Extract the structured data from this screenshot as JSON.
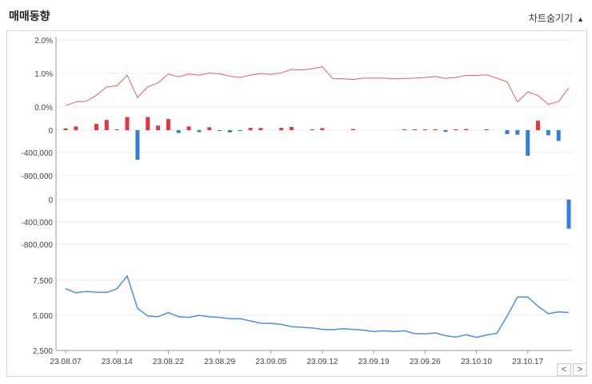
{
  "header": {
    "title": "매매동향",
    "toggle_label": "차트숨기기"
  },
  "nav": {
    "prev": "<",
    "next": ">"
  },
  "colors": {
    "rate": "#f25c5c",
    "positive": "#e8343f",
    "negative": "#2f7fdc",
    "price": "#4a90e2",
    "grid": "#eeeeee"
  },
  "chart_data": [
    {
      "type": "line",
      "name": "rate",
      "yticks": [
        "2.0%",
        "1.0%",
        "0.0%"
      ],
      "ylim": [
        0,
        2
      ],
      "values": [
        0.04,
        0.15,
        0.17,
        0.35,
        0.6,
        0.63,
        0.95,
        0.28,
        0.6,
        0.72,
        0.98,
        0.9,
        0.98,
        0.95,
        1.01,
        0.99,
        0.92,
        0.88,
        0.95,
        1.0,
        0.97,
        1.02,
        1.12,
        1.1,
        1.14,
        1.2,
        0.85,
        0.84,
        0.82,
        0.86,
        0.86,
        0.86,
        0.84,
        0.85,
        0.86,
        0.88,
        0.91,
        0.85,
        0.88,
        0.94,
        0.94,
        0.96,
        0.86,
        0.75,
        0.15,
        0.45,
        0.34,
        0.08,
        0.16,
        0.57
      ]
    },
    {
      "type": "bar",
      "name": "trade_1",
      "yticks": [
        "0",
        "-400,000",
        "-800,000"
      ],
      "ylim": [
        -800000,
        120000
      ],
      "values": [
        30000,
        65000,
        0,
        110000,
        180000,
        8000,
        230000,
        -520000,
        230000,
        80000,
        195000,
        -50000,
        65000,
        -35000,
        50000,
        -15000,
        -40000,
        -10000,
        40000,
        38000,
        0,
        40000,
        55000,
        0,
        15000,
        35000,
        0,
        0,
        20000,
        0,
        0,
        0,
        0,
        8000,
        8000,
        12000,
        12000,
        -30000,
        15000,
        20000,
        0,
        10000,
        0,
        -70000,
        -80000,
        -450000,
        165000,
        -90000,
        -190000,
        0
      ]
    },
    {
      "type": "bar",
      "name": "trade_2",
      "yticks": [
        "0",
        "-400,000",
        "-800,000"
      ],
      "ylim": [
        -800000,
        0
      ],
      "values": [
        0,
        0,
        0,
        0,
        0,
        0,
        0,
        0,
        0,
        0,
        0,
        0,
        0,
        0,
        0,
        0,
        0,
        0,
        0,
        0,
        0,
        0,
        0,
        0,
        0,
        0,
        0,
        0,
        0,
        0,
        0,
        0,
        0,
        0,
        0,
        0,
        0,
        0,
        0,
        0,
        0,
        0,
        0,
        0,
        0,
        0,
        0,
        0,
        0,
        -520000
      ]
    },
    {
      "type": "line",
      "name": "price",
      "yticks": [
        "7,500",
        "5,000",
        "2,500"
      ],
      "ylim": [
        2500,
        7500
      ],
      "values": [
        6900,
        6600,
        6700,
        6650,
        6630,
        6900,
        7800,
        5500,
        4950,
        4900,
        5200,
        4900,
        4850,
        5000,
        4900,
        4850,
        4760,
        4760,
        4600,
        4440,
        4430,
        4350,
        4200,
        4150,
        4100,
        4000,
        3980,
        4050,
        4000,
        3950,
        3850,
        3900,
        3850,
        3900,
        3700,
        3680,
        3750,
        3550,
        3450,
        3620,
        3430,
        3600,
        3720,
        4950,
        6300,
        6300,
        5650,
        5120,
        5250,
        5200
      ]
    }
  ],
  "xlabels": [
    "23.08.07",
    "23.08.14",
    "23.08.22",
    "23.08.29",
    "23.09.05",
    "23.09.12",
    "23.09.19",
    "23.09.26",
    "23.10.10",
    "23.10.17"
  ]
}
